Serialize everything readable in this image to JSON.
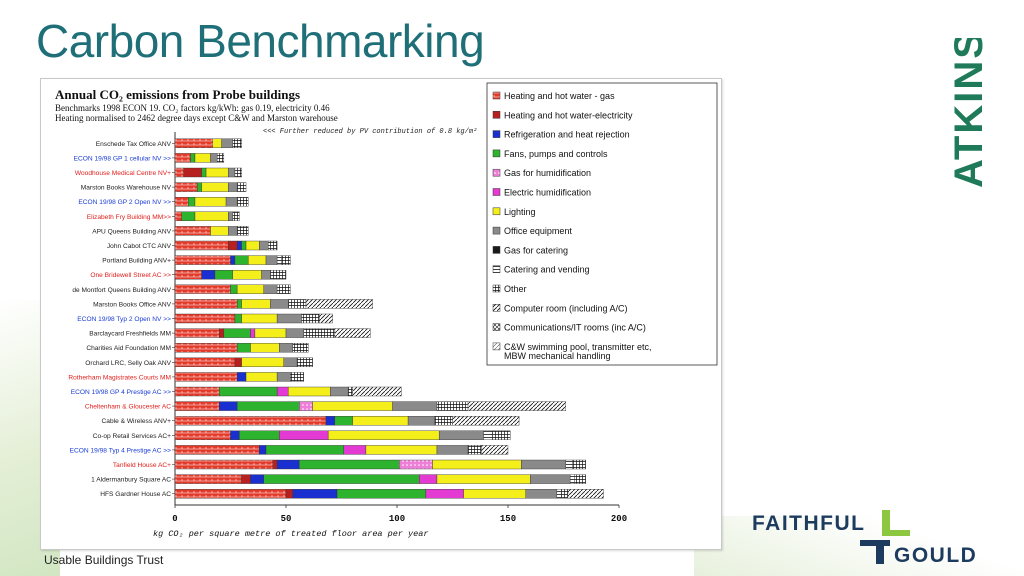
{
  "slide": {
    "title": "Carbon Benchmarking",
    "source": "Usable Buildings Trust",
    "logo_atkins": "ATKINS",
    "logo_fg_top": "FAITHFUL",
    "logo_fg_bottom": "GOULD",
    "title_color": "#1f6f78",
    "logo_green": "#1f7a5a",
    "fg_navy": "#1c3b5e",
    "fg_green": "#8dc63f"
  },
  "chart_data": {
    "type": "bar",
    "stacked": true,
    "orientation": "horizontal",
    "title": "Annual CO₂ emissions from Probe buildings",
    "subtitle_lines": [
      "Benchmarks 1998 ECON 19.  CO₂ factors kg/kWh: gas 0.19, electricity 0.46",
      "Heating normalised to 2462 degree days except C&W and Marston warehouse"
    ],
    "annotation": "<<< Further reduced by PV contribution of 0.8 kg/m²",
    "xlabel": "kg CO₂ per square metre of treated floor area per year",
    "xlim": [
      0,
      200
    ],
    "xticks": [
      "0",
      "50",
      "100",
      "150",
      "200"
    ],
    "legend_position": "right",
    "categories": [
      {
        "label": "Enschede Tax Office ANV",
        "color": "#222222"
      },
      {
        "label": "ECON 19/98 GP 1 cellular NV >>",
        "color": "#1a3cd6"
      },
      {
        "label": "Woodhouse Medical Centre NV+",
        "color": "#e0201d"
      },
      {
        "label": "Marston Books Warehouse NV",
        "color": "#222222"
      },
      {
        "label": "ECON 19/98 GP 2 Open NV >>",
        "color": "#1a3cd6"
      },
      {
        "label": "Elizabeth Fry Building MM>>",
        "color": "#e0201d"
      },
      {
        "label": "APU Queens Building ANV",
        "color": "#222222"
      },
      {
        "label": "John Cabot CTC ANV",
        "color": "#222222"
      },
      {
        "label": "Portland Building ANV+",
        "color": "#222222"
      },
      {
        "label": "One Bridewell Street AC >>",
        "color": "#e0201d"
      },
      {
        "label": "de Montfort Queens Building ANV",
        "color": "#222222"
      },
      {
        "label": "Marston Books Office ANV",
        "color": "#222222"
      },
      {
        "label": "ECON 19/98 Typ 2 Open NV >>",
        "color": "#1a3cd6"
      },
      {
        "label": "Barclaycard Freshfields MM",
        "color": "#222222"
      },
      {
        "label": "Charities Aid Foundation MM",
        "color": "#222222"
      },
      {
        "label": "Orchard LRC, Selly Oak ANV",
        "color": "#222222"
      },
      {
        "label": "Rotherham Magistrates Courts MM",
        "color": "#e0201d"
      },
      {
        "label": "ECON 19/98 GP 4 Prestige AC >>",
        "color": "#1a3cd6"
      },
      {
        "label": "Cheltenham & Gloucester AC",
        "color": "#e0201d"
      },
      {
        "label": "Cable & Wireless ANV+",
        "color": "#222222"
      },
      {
        "label": "Co-op Retail Services AC+",
        "color": "#222222"
      },
      {
        "label": "ECON 19/98 Typ 4 Prestige AC >>",
        "color": "#1a3cd6"
      },
      {
        "label": "Tanfield House AC+",
        "color": "#e0201d"
      },
      {
        "label": "1 Aldermanbury Square AC",
        "color": "#222222"
      },
      {
        "label": "HFS Gardner House AC",
        "color": "#222222"
      }
    ],
    "series": [
      {
        "name": "Heating and hot water - gas",
        "fill": "#e33a2a",
        "pattern": "brick",
        "values": [
          17,
          7,
          4,
          10,
          6,
          3,
          16,
          24,
          25,
          12,
          25,
          28,
          27,
          20,
          28,
          27,
          28,
          20,
          20,
          68,
          25,
          38,
          44,
          30,
          50
        ]
      },
      {
        "name": "Heating and hot water-electricity",
        "fill": "#b82020",
        "pattern": "solid",
        "values": [
          0,
          0,
          8,
          0,
          0,
          0,
          0,
          4,
          0,
          0,
          0,
          0,
          0,
          2,
          0,
          3,
          0,
          0,
          0,
          0,
          0,
          0,
          2,
          4,
          3
        ]
      },
      {
        "name": "Refrigeration and heat rejection",
        "fill": "#1a2fd0",
        "pattern": "solid",
        "values": [
          0,
          0,
          0,
          0,
          0,
          0,
          0,
          2,
          2,
          6,
          0,
          0,
          0,
          0,
          0,
          0,
          4,
          0,
          8,
          4,
          4,
          3,
          10,
          6,
          20
        ]
      },
      {
        "name": "Fans, pumps and controls",
        "fill": "#2db32d",
        "pattern": "solid",
        "values": [
          0,
          2,
          2,
          2,
          3,
          6,
          0,
          2,
          6,
          8,
          3,
          2,
          3,
          12,
          6,
          0,
          0,
          26,
          28,
          8,
          18,
          35,
          45,
          70,
          40
        ]
      },
      {
        "name": "Gas for humidification",
        "fill": "#ee7fd8",
        "pattern": "dots",
        "values": [
          0,
          0,
          0,
          0,
          0,
          0,
          0,
          0,
          0,
          0,
          0,
          0,
          0,
          0,
          0,
          0,
          0,
          0,
          6,
          0,
          0,
          0,
          15,
          0,
          0
        ]
      },
      {
        "name": "Electric humidification",
        "fill": "#e23ad2",
        "pattern": "solid",
        "values": [
          0,
          0,
          0,
          0,
          0,
          0,
          0,
          0,
          0,
          0,
          0,
          0,
          0,
          2,
          0,
          0,
          0,
          5,
          0,
          0,
          22,
          10,
          0,
          8,
          17
        ]
      },
      {
        "name": "Lighting",
        "fill": "#f4ee1b",
        "pattern": "solid",
        "values": [
          4,
          7,
          10,
          12,
          14,
          15,
          8,
          6,
          8,
          13,
          12,
          13,
          16,
          14,
          13,
          19,
          14,
          19,
          36,
          25,
          50,
          32,
          40,
          42,
          28
        ]
      },
      {
        "name": "Office equipment",
        "fill": "#8a8a8a",
        "pattern": "solid",
        "values": [
          5,
          3,
          3,
          4,
          5,
          2,
          4,
          4,
          5,
          4,
          6,
          8,
          11,
          8,
          6,
          6,
          6,
          8,
          20,
          12,
          20,
          14,
          20,
          18,
          14
        ]
      },
      {
        "name": "Gas for catering",
        "fill": "#1a1a1a",
        "pattern": "solid",
        "values": [
          0,
          0,
          0,
          0,
          0,
          0,
          0,
          0,
          0,
          0,
          0,
          0,
          0,
          0,
          0,
          0,
          0,
          0,
          0,
          0,
          0,
          0,
          0,
          0,
          0
        ]
      },
      {
        "name": "Catering and vending",
        "fill": "#ffffff",
        "pattern": "hlines",
        "values": [
          0,
          0,
          0,
          0,
          0,
          0,
          0,
          0,
          2,
          0,
          0,
          0,
          0,
          0,
          0,
          0,
          0,
          0,
          0,
          0,
          4,
          0,
          3,
          2,
          2
        ]
      },
      {
        "name": "Other",
        "fill": "#ffffff",
        "pattern": "grid",
        "values": [
          4,
          3,
          3,
          4,
          5,
          3,
          5,
          4,
          4,
          7,
          6,
          8,
          8,
          14,
          7,
          7,
          6,
          2,
          14,
          8,
          8,
          6,
          6,
          5,
          3
        ]
      },
      {
        "name": "Computer room (including A/C)",
        "fill": "#ffffff",
        "pattern": "diag",
        "values": [
          0,
          0,
          0,
          0,
          0,
          0,
          0,
          0,
          0,
          0,
          0,
          30,
          6,
          16,
          0,
          0,
          0,
          22,
          44,
          30,
          0,
          12,
          0,
          0,
          16
        ]
      },
      {
        "name": "Communications/IT rooms (inc A/C)",
        "fill": "#ffffff",
        "pattern": "cross",
        "values": [
          0,
          0,
          0,
          0,
          0,
          0,
          0,
          0,
          0,
          0,
          0,
          0,
          0,
          0,
          0,
          0,
          0,
          0,
          0,
          0,
          0,
          0,
          0,
          0,
          0
        ]
      },
      {
        "name": "C&W swimming pool, transmitter etc, MBW mechanical handling",
        "fill": "#ffffff",
        "pattern": "hatched-box",
        "values": [
          0,
          0,
          0,
          0,
          0,
          0,
          0,
          0,
          0,
          0,
          0,
          0,
          0,
          0,
          0,
          0,
          0,
          0,
          0,
          0,
          0,
          0,
          0,
          0,
          0
        ]
      }
    ]
  }
}
